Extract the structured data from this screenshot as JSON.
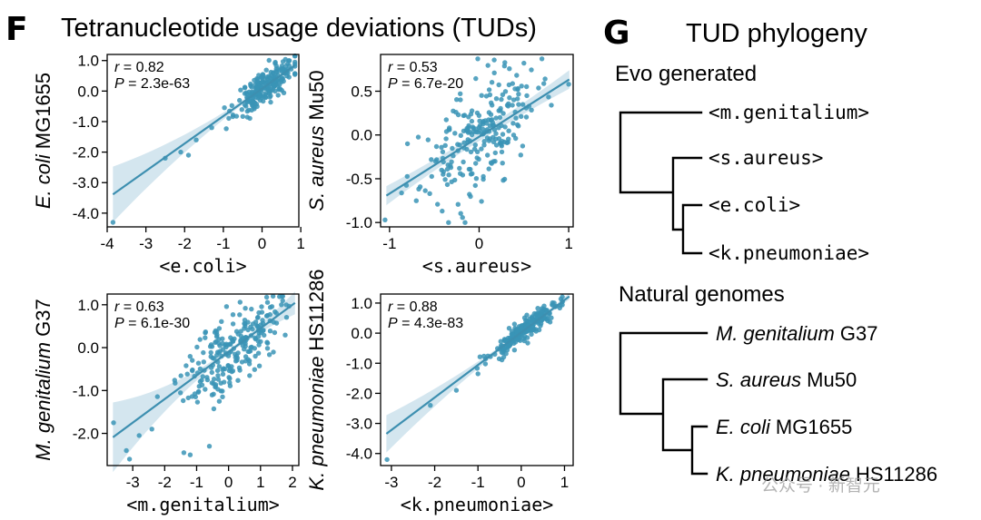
{
  "panel_f": {
    "letter": "F",
    "title": "Tetranucleotide usage deviations (TUDs)"
  },
  "panel_g": {
    "letter": "G",
    "title": "TUD phylogeny",
    "groups": [
      {
        "label": "Evo generated",
        "leaves": [
          "<m.genitalium>",
          "<s.aureus>",
          "<e.coli>",
          "<k.pneumoniae>"
        ]
      },
      {
        "label": "Natural genomes",
        "leaves": [
          {
            "species": "M. genitalium",
            "strain": "G37"
          },
          {
            "species": "S. aureus",
            "strain": "Mu50"
          },
          {
            "species": "E. coli",
            "strain": "MG1655"
          },
          {
            "species": "K. pneumoniae",
            "strain": "HS11286"
          }
        ]
      }
    ]
  },
  "watermark": "公众号 · 新智元",
  "chart_data": [
    {
      "type": "scatter",
      "xlabel": "<e.coli>",
      "ylabel_species": "E. coli",
      "ylabel_strain": "MG1655",
      "r": "0.82",
      "p": "2.3e-63",
      "xlim": [
        -4.0,
        0.95
      ],
      "ylim": [
        -4.45,
        1.2
      ],
      "xticks": [
        -4,
        -3,
        -2,
        -1,
        0,
        1
      ],
      "yticks": [
        -4.0,
        -3.0,
        -2.0,
        -1.0,
        0.0,
        1.0
      ],
      "fit": {
        "slope": 0.9,
        "intercept": 0.08
      },
      "x_center": 0.1,
      "x_spread": 0.38,
      "resid": 0.28,
      "n": 230,
      "x_min": -1.6,
      "x_max": 0.85,
      "outliers": [
        [
          -3.85,
          -4.3
        ],
        [
          -2.1,
          -2.0
        ],
        [
          -1.7,
          -1.6
        ],
        [
          -1.3,
          -1.2
        ],
        [
          -1.9,
          -2.1
        ],
        [
          -2.5,
          -2.2
        ]
      ],
      "seed": 11
    },
    {
      "type": "scatter",
      "xlabel": "<s.aureus>",
      "ylabel_species": "S. aureus",
      "ylabel_strain": "Mu50",
      "r": "0.53",
      "p": "6.7e-20",
      "xlim": [
        -1.1,
        1.05
      ],
      "ylim": [
        -1.05,
        0.92
      ],
      "xticks": [
        -1,
        0,
        1
      ],
      "yticks": [
        -1.0,
        -0.5,
        0.0,
        0.5
      ],
      "fit": {
        "slope": 0.65,
        "intercept": -0.02
      },
      "x_center": 0.0,
      "x_spread": 0.32,
      "resid": 0.3,
      "n": 240,
      "x_min": -0.9,
      "x_max": 0.95,
      "outliers": [
        [
          -1.05,
          -0.97
        ],
        [
          1.0,
          0.58
        ],
        [
          0.5,
          0.82
        ],
        [
          -0.8,
          -0.1
        ]
      ],
      "seed": 23
    },
    {
      "type": "scatter",
      "xlabel": "<m.genitalium>",
      "ylabel_species": "M. genitalium",
      "ylabel_strain": "G37",
      "r": "0.63",
      "p": "6.1e-30",
      "xlim": [
        -3.8,
        2.2
      ],
      "ylim": [
        -2.75,
        1.25
      ],
      "xticks": [
        -3,
        -2,
        -1,
        0,
        1,
        2
      ],
      "yticks": [
        -2.0,
        -1.0,
        0.0,
        1.0
      ],
      "fit": {
        "slope": 0.55,
        "intercept": -0.1
      },
      "x_center": 0.1,
      "x_spread": 0.75,
      "resid": 0.45,
      "n": 240,
      "x_min": -2.3,
      "x_max": 1.95,
      "outliers": [
        [
          -3.6,
          -1.75
        ],
        [
          -3.1,
          -2.6
        ],
        [
          -2.8,
          -2.05
        ],
        [
          -1.4,
          -2.45
        ],
        [
          -1.2,
          -2.5
        ],
        [
          -0.6,
          -2.3
        ],
        [
          -2.4,
          -1.9
        ],
        [
          -3.2,
          -2.4
        ]
      ],
      "seed": 37
    },
    {
      "type": "scatter",
      "xlabel": "<k.pneumoniae>",
      "ylabel_species": "K. pneumoniae",
      "ylabel_strain": "HS11286",
      "r": "0.88",
      "p": "4.3e-83",
      "xlim": [
        -3.25,
        1.2
      ],
      "ylim": [
        -4.4,
        1.3
      ],
      "xticks": [
        -3,
        -2,
        -1,
        0,
        1
      ],
      "yticks": [
        -4.0,
        -3.0,
        -2.0,
        -1.0,
        0.0,
        1.0
      ],
      "fit": {
        "slope": 1.08,
        "intercept": 0.02
      },
      "x_center": 0.1,
      "x_spread": 0.42,
      "resid": 0.18,
      "n": 240,
      "x_min": -1.8,
      "x_max": 0.95,
      "outliers": [
        [
          -3.1,
          -4.2
        ],
        [
          -2.1,
          -2.4
        ],
        [
          -1.5,
          -1.9
        ],
        [
          -1.0,
          -1.35
        ]
      ],
      "seed": 53
    }
  ]
}
